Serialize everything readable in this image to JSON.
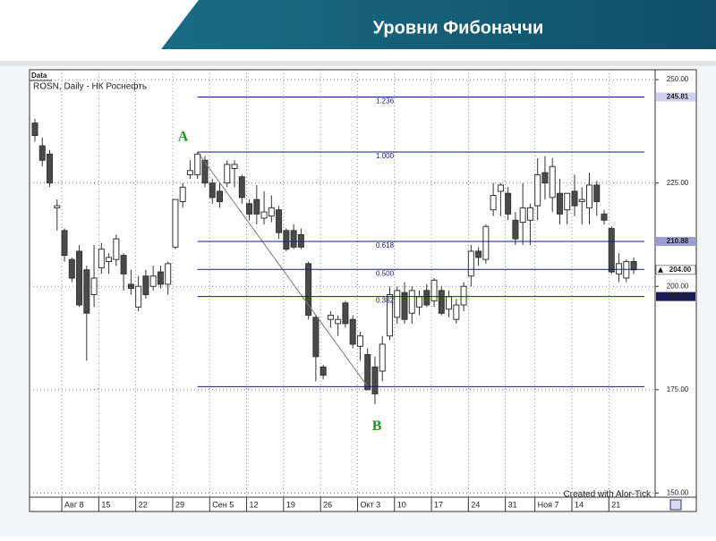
{
  "chart_data": {
    "type": "candlestick",
    "title": "Уровни Фибоначчи",
    "panel_label": "Data",
    "subtitle": "ROSN, Daily - НК Роснефть",
    "credit": "Created with Alor-Tick",
    "point_labels": [
      "A",
      "B"
    ],
    "categories": [
      null,
      null,
      null,
      null,
      "Авг 8",
      null,
      null,
      null,
      null,
      "15",
      null,
      null,
      null,
      null,
      "22",
      null,
      null,
      null,
      null,
      "29",
      null,
      null,
      null,
      null,
      "Сен 5",
      null,
      null,
      null,
      null,
      "12",
      null,
      null,
      null,
      null,
      "19",
      null,
      null,
      null,
      null,
      "26",
      null,
      null,
      null,
      null,
      "Окт 3",
      null,
      null,
      null,
      null,
      "10",
      null,
      null,
      null,
      null,
      "17",
      null,
      null,
      null,
      null,
      "24",
      null,
      null,
      null,
      null,
      "31",
      null,
      null,
      null,
      "Ноя 7",
      null,
      null,
      null,
      null,
      "14",
      null,
      null,
      null,
      null,
      "21",
      null,
      null,
      null
    ],
    "ohlc": [
      [
        239.5,
        240.5,
        235,
        236.5
      ],
      [
        234,
        236,
        229,
        230.5
      ],
      [
        232,
        233,
        224,
        225
      ],
      [
        219,
        221,
        213.5,
        219.5
      ],
      [
        213.5,
        214,
        206,
        207.5
      ],
      [
        206.5,
        207,
        201,
        202
      ],
      [
        208.5,
        210,
        195,
        195.5
      ],
      [
        204,
        205,
        182,
        193.5
      ],
      [
        198,
        210,
        195,
        202
      ],
      [
        204.5,
        210.5,
        203,
        209
      ],
      [
        206,
        208,
        203,
        207
      ],
      [
        206.5,
        212.5,
        205,
        211.5
      ],
      [
        207.5,
        208,
        199,
        203
      ],
      [
        200.5,
        204,
        198,
        199.5
      ],
      [
        195,
        202.5,
        194,
        200
      ],
      [
        202.5,
        204,
        197,
        198
      ],
      [
        200,
        205,
        199,
        202.5
      ],
      [
        203.5,
        205,
        199.5,
        200.5
      ],
      [
        200.5,
        206,
        198,
        205.5
      ],
      [
        209.5,
        221,
        209,
        221
      ],
      [
        220.5,
        225,
        219,
        224
      ],
      [
        227,
        230.5,
        226,
        228
      ],
      [
        227,
        232.5,
        226,
        232
      ],
      [
        230.5,
        231.5,
        224,
        225
      ],
      [
        225,
        226,
        220,
        221.5
      ],
      [
        223,
        225,
        219,
        220.5
      ],
      [
        225,
        230.5,
        224,
        229.5
      ],
      [
        228.5,
        230.5,
        224,
        229.5
      ],
      [
        226.5,
        227,
        220,
        221.5
      ],
      [
        220,
        221,
        216,
        217.5
      ],
      [
        221,
        224.5,
        215,
        217.5
      ],
      [
        216.5,
        223,
        215,
        218
      ],
      [
        217,
        222,
        215.5,
        219
      ],
      [
        218.5,
        219.5,
        211.5,
        213
      ],
      [
        213.5,
        214,
        208.5,
        209
      ],
      [
        213.5,
        215,
        209,
        209.5
      ],
      [
        212.5,
        214,
        209,
        209.5
      ],
      [
        205.5,
        206,
        192,
        193
      ],
      [
        192.5,
        193,
        177,
        183
      ],
      [
        180.5,
        181,
        177.5,
        178.5
      ],
      [
        192,
        194,
        190,
        193
      ],
      [
        191,
        193,
        188,
        192
      ],
      [
        196,
        196.5,
        190,
        191
      ],
      [
        192,
        193,
        185,
        186
      ],
      [
        185.5,
        189,
        182,
        188
      ],
      [
        183.5,
        185,
        175.75,
        175
      ],
      [
        180.5,
        183,
        171.5,
        174
      ],
      [
        179.5,
        188,
        177,
        186
      ],
      [
        188,
        200,
        187,
        198
      ],
      [
        192.5,
        200,
        191,
        199
      ],
      [
        198.5,
        201,
        191,
        192
      ],
      [
        193.5,
        200,
        191,
        199
      ],
      [
        195,
        199,
        193,
        197.5
      ],
      [
        199,
        200.5,
        195,
        195.5
      ],
      [
        196.5,
        202,
        195,
        201.5
      ],
      [
        199,
        200,
        193,
        193.5
      ],
      [
        194.5,
        199,
        192.5,
        197.5
      ],
      [
        192,
        197,
        191,
        195.5
      ],
      [
        195.5,
        201,
        194,
        200
      ],
      [
        202.5,
        210,
        200,
        208.5
      ],
      [
        208.5,
        209.5,
        205,
        207
      ],
      [
        206.5,
        215,
        205.5,
        214.5
      ],
      [
        218.5,
        225,
        217,
        222
      ],
      [
        223,
        225,
        217,
        224.5
      ],
      [
        222.5,
        224,
        216,
        217.5
      ],
      [
        216,
        218,
        210,
        211.5
      ],
      [
        215.5,
        225,
        210,
        219
      ],
      [
        216,
        220,
        210,
        219
      ],
      [
        219.5,
        231,
        216,
        227
      ],
      [
        227.5,
        231.5,
        221,
        225
      ],
      [
        221.5,
        231,
        218,
        229
      ],
      [
        222.5,
        226,
        215,
        217.5
      ],
      [
        218.5,
        222,
        215,
        222.5
      ],
      [
        223,
        227,
        217,
        219.5
      ],
      [
        220.5,
        224,
        215,
        221
      ],
      [
        219,
        227.5,
        215,
        224.5
      ],
      [
        224.5,
        225.5,
        217,
        220.5
      ],
      [
        217.5,
        218.5,
        215,
        216
      ],
      [
        214,
        214.5,
        203,
        203.5
      ],
      [
        203,
        208,
        201,
        205.5
      ],
      [
        202,
        206.5,
        201,
        206
      ],
      [
        206,
        207,
        203,
        204
      ]
    ],
    "fib_levels": [
      {
        "label": "1.236",
        "value": 245.81
      },
      {
        "label": "1.000",
        "value": 232.5
      },
      {
        "label": "0.618",
        "value": 210.88
      },
      {
        "label": "0.500",
        "value": 204.1
      },
      {
        "label": "0.382",
        "value": 197.54
      },
      {
        "value": 175.75
      }
    ],
    "last_price": {
      "value": 204,
      "label": "204.00"
    },
    "ylim": [
      149,
      252.4
    ],
    "yticks": [
      {
        "value": 150,
        "label": "150.00"
      },
      {
        "value": 175,
        "label": "175.00"
      },
      {
        "value": 200,
        "label": "200.00"
      },
      {
        "value": 225,
        "label": "225.00"
      },
      {
        "value": 250,
        "label": "250.00"
      }
    ],
    "grid": true
  }
}
